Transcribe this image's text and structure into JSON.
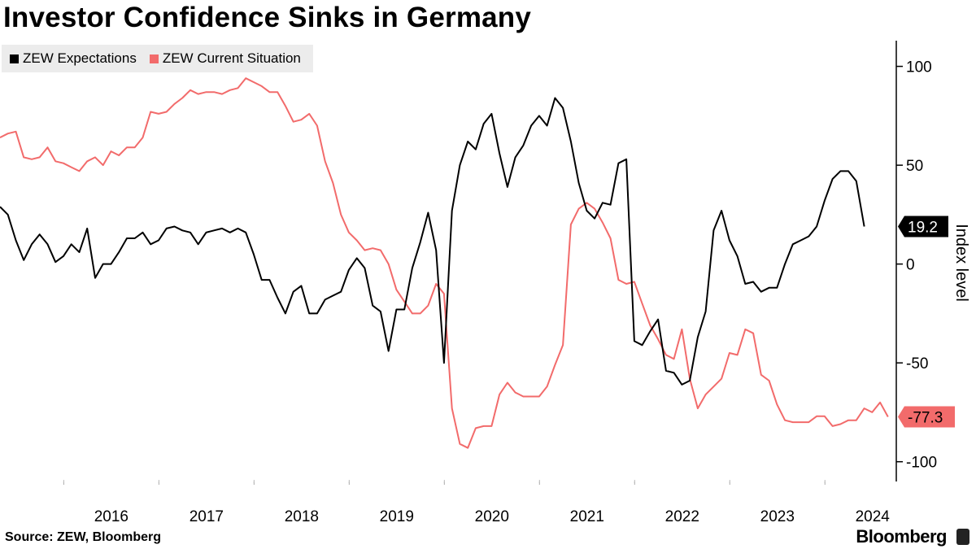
{
  "title": "Investor Confidence Sinks in Germany",
  "source": "Source: ZEW, Bloomberg",
  "brand": "Bloomberg",
  "chart_data": {
    "type": "line",
    "title": "Investor Confidence Sinks in Germany",
    "ylabel": "Index level",
    "ylim": [
      -110,
      113
    ],
    "yticks": [
      100,
      50,
      0,
      -50,
      -100
    ],
    "yticklabels": [
      "100",
      "50",
      "0",
      "-50",
      "-100"
    ],
    "xlim": [
      2015.33,
      2024.75
    ],
    "xticks": [
      2016,
      2017,
      2018,
      2019,
      2020,
      2021,
      2022,
      2023,
      2024
    ],
    "xticklabels": [
      "2016",
      "2017",
      "2018",
      "2019",
      "2020",
      "2021",
      "2022",
      "2023",
      "2024"
    ],
    "grid": false,
    "legend_position": "top-left",
    "x_start": 2015.33,
    "x_step": 0.08333,
    "series": [
      {
        "name": "ZEW Expectations",
        "color": "#000000",
        "end_label": "19.2",
        "values": [
          29,
          25,
          12,
          2,
          10,
          15,
          10,
          1,
          4,
          10,
          6,
          18,
          -7,
          0,
          0,
          6,
          13,
          13,
          16,
          10,
          12,
          18,
          19,
          17,
          16,
          10,
          16,
          17,
          18,
          16,
          18,
          16,
          5,
          -8,
          -8,
          -17,
          -25,
          -14,
          -11,
          -25,
          -25,
          -18,
          -16,
          -14,
          -3,
          3,
          -2,
          -21,
          -24,
          -44,
          -23,
          -23,
          -2,
          11,
          26,
          7,
          -50,
          27,
          50,
          62,
          58,
          71,
          76,
          56,
          39,
          54,
          60,
          70,
          75,
          70,
          84,
          79,
          62,
          41,
          27,
          23,
          31,
          30,
          51,
          53,
          -39,
          -41,
          -34,
          -28,
          -54,
          -55,
          -61,
          -59,
          -37,
          -24,
          17,
          27,
          12,
          4,
          -10,
          -9,
          -14,
          -12,
          -12,
          0,
          10,
          12,
          14,
          19,
          32,
          43,
          47,
          47,
          42,
          19
        ]
      },
      {
        "name": "ZEW Current Situation",
        "color": "#f26b6b",
        "end_label": "-77.3",
        "values": [
          64,
          66,
          67,
          54,
          53,
          54,
          59,
          52,
          51,
          49,
          47,
          52,
          54,
          50,
          57,
          55,
          59,
          59,
          64,
          77,
          76,
          77,
          81,
          84,
          88,
          86,
          87,
          87,
          86,
          88,
          89,
          94,
          92,
          90,
          87,
          87,
          80,
          72,
          73,
          76,
          70,
          52,
          41,
          25,
          16,
          12,
          7,
          8,
          7,
          0,
          -13,
          -19,
          -25,
          -25,
          -21,
          -10,
          -15,
          -73,
          -91,
          -93,
          -83,
          -82,
          -82,
          -66,
          -60,
          -65,
          -67,
          -67,
          -67,
          -62,
          -51,
          -41,
          20,
          28,
          31,
          28,
          21,
          13,
          -8,
          -10,
          -9,
          -20,
          -31,
          -38,
          -46,
          -48,
          -33,
          -58,
          -73,
          -66,
          -62,
          -58,
          -45,
          -46,
          -33,
          -35,
          -56,
          -59,
          -71,
          -79,
          -80,
          -80,
          -80,
          -77,
          -77,
          -82,
          -81,
          -79,
          -79,
          -73,
          -75,
          -70,
          -77.3
        ]
      }
    ]
  }
}
